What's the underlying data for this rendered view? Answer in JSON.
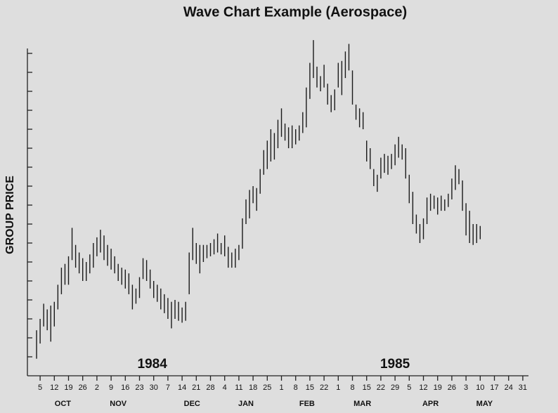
{
  "chart_data": {
    "type": "hilo",
    "title": "Wave Chart Example (Aerospace)",
    "y_label": "GROUP PRICE",
    "color": "#1a1a1a",
    "x": [
      -0.25,
      0,
      0.25,
      0.5,
      0.75,
      1,
      1.25,
      1.5,
      1.75,
      2,
      2.25,
      2.5,
      2.75,
      3,
      3.25,
      3.5,
      3.75,
      4,
      4.25,
      4.5,
      4.75,
      5,
      5.25,
      5.5,
      5.75,
      6,
      6.25,
      6.5,
      6.75,
      7,
      7.25,
      7.5,
      7.75,
      8,
      8.25,
      8.5,
      8.75,
      9,
      9.25,
      9.5,
      9.75,
      10,
      10.25,
      10.5,
      10.75,
      11,
      11.25,
      11.5,
      11.75,
      12,
      12.25,
      12.5,
      12.75,
      13,
      13.25,
      13.5,
      13.75,
      14,
      14.25,
      14.5,
      14.75,
      15,
      15.25,
      15.5,
      15.75,
      16,
      16.25,
      16.5,
      16.75,
      17,
      17.25,
      17.5,
      17.75,
      18,
      18.25,
      18.5,
      18.75,
      19,
      19.25,
      19.5,
      19.75,
      20,
      20.25,
      20.5,
      20.75,
      21,
      21.25,
      21.5,
      21.75,
      22,
      22.25,
      22.5,
      22.75,
      23,
      23.25,
      23.5,
      23.75,
      24,
      24.25,
      24.5,
      24.75,
      25,
      25.25,
      25.5,
      25.75,
      26,
      26.25,
      26.5,
      26.75,
      27,
      27.25,
      27.5,
      27.75,
      28,
      28.25,
      28.5,
      28.75,
      29,
      29.25,
      29.5,
      29.75,
      30,
      30.25,
      30.5,
      30.75,
      31
    ],
    "high": [
      2.4,
      3.0,
      3.8,
      3.5,
      3.7,
      3.9,
      4.8,
      5.7,
      5.9,
      6.3,
      7.8,
      6.9,
      6.5,
      6.2,
      6.0,
      6.4,
      7.0,
      7.3,
      7.7,
      7.4,
      6.9,
      6.7,
      6.3,
      5.9,
      5.7,
      5.6,
      5.4,
      4.8,
      4.6,
      5.2,
      6.2,
      6.1,
      5.6,
      5.0,
      4.8,
      4.6,
      4.3,
      4.1,
      3.9,
      4.0,
      3.9,
      3.6,
      3.9,
      6.5,
      7.8,
      7.0,
      6.9,
      6.9,
      6.9,
      7.0,
      7.2,
      7.5,
      7.0,
      7.4,
      6.8,
      6.5,
      6.7,
      6.9,
      8.3,
      9.3,
      9.8,
      10.0,
      9.9,
      10.9,
      11.9,
      12.4,
      13.0,
      12.8,
      13.5,
      14.1,
      13.3,
      13.1,
      13.2,
      13.0,
      13.2,
      13.9,
      15.2,
      16.5,
      17.7,
      16.3,
      15.8,
      16.4,
      15.4,
      14.8,
      15.1,
      16.5,
      16.6,
      17.1,
      17.5,
      16.1,
      14.3,
      14.1,
      13.9,
      12.4,
      12.0,
      10.9,
      10.6,
      11.5,
      11.7,
      11.6,
      11.7,
      12.2,
      12.6,
      12.2,
      12.0,
      10.6,
      9.7,
      8.5,
      8.0,
      8.3,
      9.4,
      9.6,
      9.5,
      9.4,
      9.5,
      9.3,
      9.6,
      10.4,
      11.1,
      10.9,
      10.3,
      9.1,
      8.7,
      8.0,
      8.0,
      7.9
    ],
    "low": [
      0.9,
      1.7,
      2.6,
      2.4,
      1.8,
      2.6,
      3.5,
      4.3,
      4.8,
      4.8,
      6.1,
      5.7,
      5.4,
      5.0,
      5.0,
      5.4,
      5.7,
      6.3,
      6.5,
      6.1,
      5.8,
      5.6,
      5.4,
      5.0,
      4.8,
      4.6,
      4.3,
      3.5,
      3.8,
      4.1,
      5.1,
      5.0,
      4.6,
      4.1,
      3.9,
      3.5,
      3.3,
      3.0,
      2.5,
      3.0,
      2.9,
      2.8,
      2.9,
      4.3,
      6.1,
      5.9,
      5.4,
      6.0,
      6.2,
      6.3,
      6.4,
      6.5,
      6.4,
      6.3,
      5.7,
      5.7,
      5.7,
      6.1,
      6.7,
      8.0,
      8.3,
      9.1,
      8.7,
      9.6,
      10.6,
      10.9,
      11.3,
      11.4,
      12.0,
      12.6,
      12.4,
      12.0,
      12.0,
      12.2,
      12.4,
      12.8,
      13.1,
      14.6,
      15.7,
      15.2,
      15.0,
      15.2,
      14.3,
      13.9,
      14.0,
      15.2,
      14.8,
      15.7,
      16.1,
      14.3,
      13.5,
      13.1,
      13.0,
      11.3,
      10.9,
      10.0,
      9.7,
      10.4,
      10.7,
      10.6,
      10.9,
      11.1,
      11.5,
      11.4,
      10.4,
      9.1,
      8.0,
      7.5,
      7.0,
      7.2,
      8.0,
      8.7,
      8.8,
      8.5,
      8.7,
      8.7,
      8.9,
      9.3,
      9.8,
      10.1,
      8.7,
      7.4,
      7.0,
      6.9,
      7.0,
      7.2
    ],
    "xlim": [
      -0.5,
      34.4
    ],
    "ylim": [
      0,
      18
    ],
    "yticks": [
      1,
      2,
      3,
      4,
      5,
      6,
      7,
      8,
      9,
      10,
      11,
      12,
      13,
      14,
      15,
      16,
      17
    ],
    "xticks": [
      {
        "value": 0,
        "label": "5"
      },
      {
        "value": 1,
        "label": "12"
      },
      {
        "value": 2,
        "label": "19"
      },
      {
        "value": 3,
        "label": "26"
      },
      {
        "value": 4,
        "label": "2"
      },
      {
        "value": 5,
        "label": "9"
      },
      {
        "value": 6,
        "label": "16"
      },
      {
        "value": 7,
        "label": "23"
      },
      {
        "value": 8,
        "label": "30"
      },
      {
        "value": 9,
        "label": "7"
      },
      {
        "value": 10,
        "label": "14"
      },
      {
        "value": 11,
        "label": "21"
      },
      {
        "value": 12,
        "label": "28"
      },
      {
        "value": 13,
        "label": "4"
      },
      {
        "value": 14,
        "label": "11"
      },
      {
        "value": 15,
        "label": "18"
      },
      {
        "value": 16,
        "label": "25"
      },
      {
        "value": 17,
        "label": "1"
      },
      {
        "value": 18,
        "label": "8"
      },
      {
        "value": 19,
        "label": "15"
      },
      {
        "value": 20,
        "label": "22"
      },
      {
        "value": 21,
        "label": "1"
      },
      {
        "value": 22,
        "label": "8"
      },
      {
        "value": 23,
        "label": "15"
      },
      {
        "value": 24,
        "label": "22"
      },
      {
        "value": 25,
        "label": "29"
      },
      {
        "value": 26,
        "label": "5"
      },
      {
        "value": 27,
        "label": "12"
      },
      {
        "value": 28,
        "label": "19"
      },
      {
        "value": 29,
        "label": "26"
      },
      {
        "value": 30,
        "label": "3"
      },
      {
        "value": 31,
        "label": "10"
      },
      {
        "value": 32,
        "label": "17"
      },
      {
        "value": 33,
        "label": "24"
      },
      {
        "value": 34,
        "label": "31"
      }
    ],
    "month_labels": [
      {
        "text": "OCT",
        "x": 1.6
      },
      {
        "text": "NOV",
        "x": 5.5
      },
      {
        "text": "DEC",
        "x": 10.7
      },
      {
        "text": "JAN",
        "x": 14.5
      },
      {
        "text": "FEB",
        "x": 18.8
      },
      {
        "text": "MAR",
        "x": 22.7
      },
      {
        "text": "APR",
        "x": 27.5
      },
      {
        "text": "MAY",
        "x": 31.3
      }
    ],
    "year_labels": [
      {
        "text": "1984",
        "x": 7.9,
        "y": 0.6
      },
      {
        "text": "1985",
        "x": 25.0,
        "y": 0.6
      }
    ]
  }
}
